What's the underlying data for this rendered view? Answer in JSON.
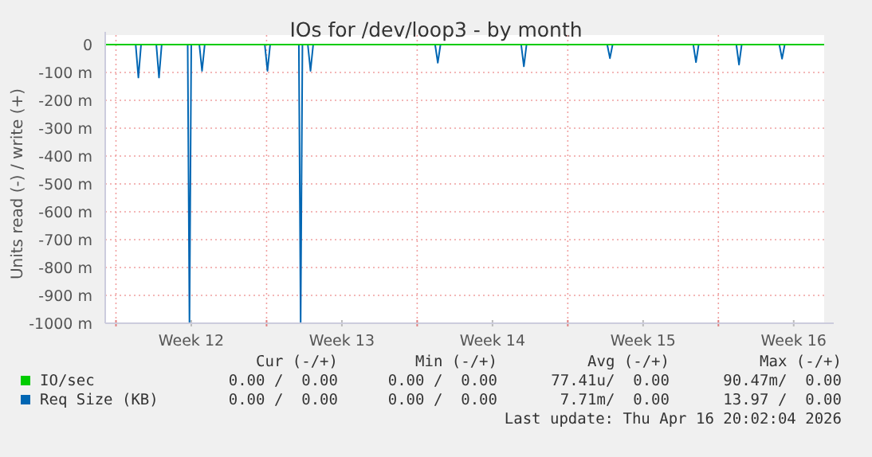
{
  "chart_data": {
    "type": "line",
    "title": "IOs for /dev/loop3 - by month",
    "ylabel": "Units read (-) / write (+)",
    "xlim": [
      "2026-03-15T12:00",
      "2026-04-17T22:00"
    ],
    "xticks": [
      {
        "value": "2026-03-16T00:00",
        "label": null
      },
      {
        "value": "2026-03-19T12:00",
        "label": "Week 12"
      },
      {
        "value": "2026-03-23T00:00",
        "label": null
      },
      {
        "value": "2026-03-26T12:00",
        "label": "Week 13"
      },
      {
        "value": "2026-03-30T00:00",
        "label": null
      },
      {
        "value": "2026-04-02T12:00",
        "label": "Week 14"
      },
      {
        "value": "2026-04-06T00:00",
        "label": null
      },
      {
        "value": "2026-04-09T12:00",
        "label": "Week 15"
      },
      {
        "value": "2026-04-13T00:00",
        "label": null
      },
      {
        "value": "2026-04-16T12:00",
        "label": "Week 16"
      }
    ],
    "ylim": [
      -1000,
      0
    ],
    "yticks": [
      {
        "value": -1000,
        "label": "-1000 m"
      },
      {
        "value": -900,
        "label": "-900 m"
      },
      {
        "value": -800,
        "label": "-800 m"
      },
      {
        "value": -700,
        "label": "-700 m"
      },
      {
        "value": -600,
        "label": "-600 m"
      },
      {
        "value": -500,
        "label": "-500 m"
      },
      {
        "value": -400,
        "label": "-400 m"
      },
      {
        "value": -300,
        "label": "-300 m"
      },
      {
        "value": -200,
        "label": "-200 m"
      },
      {
        "value": -100,
        "label": "-100 m"
      },
      {
        "value": 0,
        "label": "0"
      }
    ],
    "grid": true,
    "legend": "bottom",
    "series": [
      {
        "name": "IO/sec",
        "color": "#00cc00",
        "x": [
          "2026-03-15T12:00",
          "2026-04-17T22:00"
        ],
        "values": [
          0,
          0
        ]
      },
      {
        "name": "Req Size (KB)",
        "color": "#0066b3",
        "x": [
          "2026-03-15T12:00",
          "2026-03-16T22:00",
          "2026-03-17T01:00",
          "2026-03-17T04:00",
          "2026-03-17T21:00",
          "2026-03-18T00:00",
          "2026-03-18T03:00",
          "2026-03-19T08:00",
          "2026-03-19T10:00",
          "2026-03-19T12:00",
          "2026-03-19T21:00",
          "2026-03-20T00:00",
          "2026-03-20T03:00",
          "2026-03-22T22:00",
          "2026-03-23T01:00",
          "2026-03-23T04:00",
          "2026-03-24T12:00",
          "2026-03-24T14:00",
          "2026-03-24T16:00",
          "2026-03-24T22:00",
          "2026-03-25T01:00",
          "2026-03-25T04:00",
          "2026-03-30T20:00",
          "2026-03-30T23:00",
          "2026-03-31T02:00",
          "2026-04-03T20:00",
          "2026-04-03T23:00",
          "2026-04-04T02:00",
          "2026-04-07T20:00",
          "2026-04-07T23:00",
          "2026-04-08T02:00",
          "2026-04-11T20:00",
          "2026-04-11T23:00",
          "2026-04-12T02:00",
          "2026-04-13T20:00",
          "2026-04-13T23:00",
          "2026-04-14T02:00",
          "2026-04-15T20:00",
          "2026-04-15T23:00",
          "2026-04-16T02:00",
          "2026-04-17T22:00"
        ],
        "values": [
          0,
          0,
          -118,
          0,
          0,
          -118,
          0,
          0,
          -1000,
          0,
          0,
          -94,
          0,
          0,
          -94,
          0,
          0,
          -1000,
          0,
          0,
          -94,
          0,
          0,
          -65,
          0,
          0,
          -78,
          0,
          0,
          -49,
          0,
          0,
          -63,
          0,
          0,
          -72,
          0,
          0,
          -51,
          0,
          0
        ]
      }
    ],
    "annotations": [
      "Cur (-/+)",
      "Min (-/+)",
      "Avg (-/+)",
      "Max (-/+)",
      "0.00 /  0.00",
      "0.00 /  0.00",
      "77.41u/  0.00",
      "90.47m/  0.00",
      "0.00 /  0.00",
      "0.00 /  0.00",
      "7.71m/  0.00",
      "13.97 /  0.00",
      "Last update: Thu Apr 16 20:02:04 2026"
    ]
  }
}
